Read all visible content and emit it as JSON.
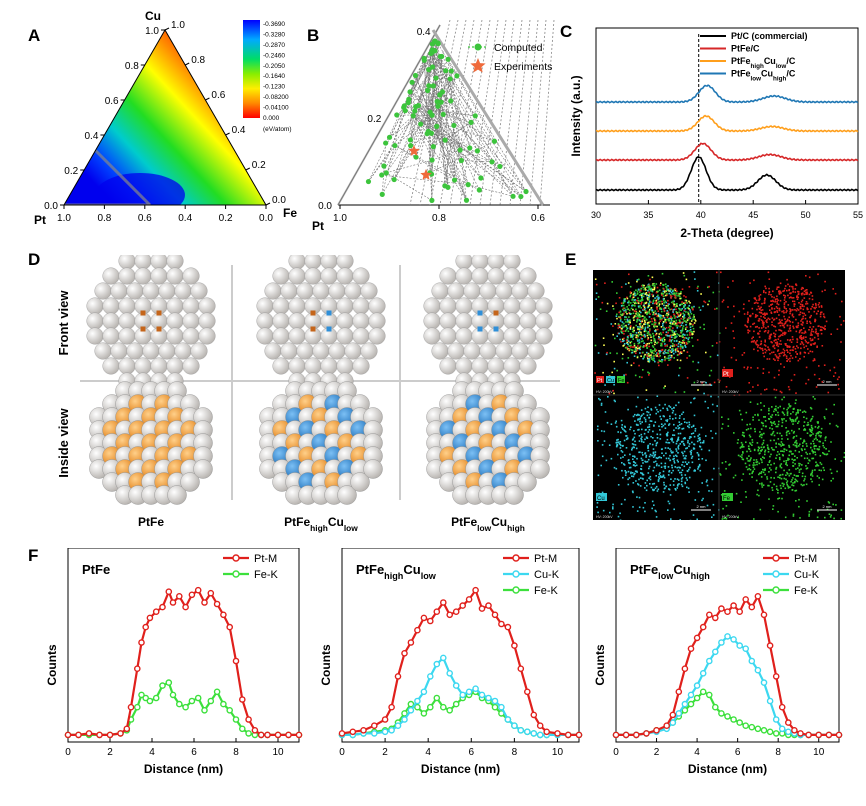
{
  "figure": {
    "panel_labels": [
      "A",
      "B",
      "C",
      "D",
      "E",
      "F"
    ]
  },
  "panelA": {
    "corner_labels": {
      "top": "Cu",
      "left": "Pt",
      "right": "Fe"
    },
    "left_ticks": [
      "0.0",
      "0.2",
      "0.4",
      "0.6",
      "0.8",
      "1.0"
    ],
    "right_ticks": [
      "0.0",
      "0.2",
      "0.4",
      "0.6",
      "0.8",
      "1.0"
    ],
    "bottom_ticks": [
      "1.0",
      "0.8",
      "0.6",
      "0.4",
      "0.2",
      "0.0"
    ],
    "colorbar_values": [
      "-0.3690",
      "-0.3280",
      "-0.2870",
      "-0.2460",
      "-0.2050",
      "-0.1640",
      "-0.1230",
      "-0.08200",
      "-0.04100",
      "0.000"
    ],
    "colorbar_unit": "(eV/atom)",
    "colors": {
      "high": "#0000ff",
      "mid": "#00dd00",
      "low": "#ff0000"
    }
  },
  "panelB": {
    "corner_label": "Pt",
    "left_ticks": [
      "0.0",
      "0.2",
      "0.4"
    ],
    "bottom_ticks": [
      "1.0",
      "0.8",
      "0.6"
    ],
    "legend": {
      "computed": "Computed",
      "experiments": "Experiments"
    },
    "colors": {
      "computed": "#3cc43c",
      "experiments": "#ef6a3b"
    }
  },
  "chart_data": [
    {
      "type": "line",
      "panel": "C",
      "title": "",
      "xlabel": "2-Theta (degree)",
      "ylabel": "Intensity (a.u.)",
      "xlim": [
        30,
        55
      ],
      "xticks": [
        "30",
        "35",
        "40",
        "45",
        "50",
        "55"
      ],
      "reference_line_x": 39.8,
      "legend": [
        {
          "name": "Pt/C (commercial)",
          "color": "#000000"
        },
        {
          "name": "PtFe/C",
          "color": "#d62728"
        },
        {
          "name": "PtFe",
          "sub1": "high",
          "mid": "Cu",
          "sub2": "low",
          "tail": "/C",
          "color": "#ff9f1c"
        },
        {
          "name": "PtFe",
          "sub1": "low",
          "mid": "Cu",
          "sub2": "high",
          "tail": "/C",
          "color": "#1f77b4"
        }
      ],
      "series": [
        {
          "name": "PtFe_lowCu_high/C",
          "color": "#1f77b4",
          "offset": 3,
          "peaks": [
            [
              40.6,
              0.55,
              1.1
            ],
            [
              47.0,
              0.2,
              1.5
            ]
          ]
        },
        {
          "name": "PtFe_highCu_low/C",
          "color": "#ff9f1c",
          "offset": 2,
          "peaks": [
            [
              40.5,
              0.5,
              1.1
            ],
            [
              46.8,
              0.15,
              1.5
            ]
          ]
        },
        {
          "name": "PtFe/C",
          "color": "#d62728",
          "offset": 1,
          "peaks": [
            [
              40.2,
              0.55,
              1.1
            ],
            [
              46.6,
              0.18,
              1.5
            ]
          ]
        },
        {
          "name": "Pt/C (commercial)",
          "color": "#000000",
          "offset": 0,
          "peaks": [
            [
              39.8,
              1.1,
              1.0
            ],
            [
              46.3,
              0.5,
              1.2
            ]
          ]
        }
      ]
    },
    {
      "type": "line",
      "panel": "F1",
      "title": "PtFe",
      "xlabel": "Distance (nm)",
      "ylabel": "Counts",
      "xlim": [
        0,
        11
      ],
      "xticks": [
        "0",
        "2",
        "4",
        "6",
        "8",
        "10"
      ],
      "legend": [
        {
          "name": "Pt-M",
          "color": "#e0201c"
        },
        {
          "name": "Fe-K",
          "color": "#3ce03c"
        }
      ],
      "series": [
        {
          "name": "Pt-M",
          "color": "#e0201c",
          "x": [
            0,
            0.5,
            1,
            1.5,
            2,
            2.5,
            2.8,
            3.0,
            3.3,
            3.5,
            3.7,
            3.9,
            4.2,
            4.5,
            4.8,
            5.0,
            5.3,
            5.6,
            5.9,
            6.2,
            6.5,
            6.8,
            7.1,
            7.4,
            7.7,
            8.0,
            8.3,
            8.6,
            8.9,
            9.2,
            9.5,
            10,
            10.5,
            11
          ],
          "y": [
            0.02,
            0.02,
            0.03,
            0.02,
            0.02,
            0.03,
            0.06,
            0.2,
            0.45,
            0.62,
            0.72,
            0.78,
            0.82,
            0.85,
            0.95,
            0.88,
            0.92,
            0.85,
            0.93,
            0.96,
            0.88,
            0.94,
            0.87,
            0.8,
            0.72,
            0.5,
            0.25,
            0.12,
            0.05,
            0.02,
            0.02,
            0.02,
            0.02,
            0.02
          ]
        },
        {
          "name": "Fe-K",
          "color": "#3ce03c",
          "x": [
            0,
            0.5,
            1,
            1.5,
            2,
            2.5,
            2.8,
            3.0,
            3.3,
            3.5,
            3.7,
            3.9,
            4.2,
            4.5,
            4.8,
            5.0,
            5.3,
            5.6,
            5.9,
            6.2,
            6.5,
            6.8,
            7.1,
            7.4,
            7.7,
            8.0,
            8.3,
            8.6,
            8.9,
            9.2,
            9.5,
            10,
            10.5,
            11
          ],
          "y": [
            0.02,
            0.02,
            0.02,
            0.02,
            0.02,
            0.03,
            0.05,
            0.12,
            0.2,
            0.28,
            0.26,
            0.24,
            0.26,
            0.34,
            0.36,
            0.28,
            0.22,
            0.2,
            0.24,
            0.26,
            0.18,
            0.24,
            0.3,
            0.22,
            0.18,
            0.12,
            0.06,
            0.03,
            0.02,
            0.02,
            0.02,
            0.02,
            0.02,
            0.02
          ]
        }
      ]
    },
    {
      "type": "line",
      "panel": "F2",
      "title": "PtFe",
      "title_sub1": "high",
      "title_mid": "Cu",
      "title_sub2": "low",
      "xlabel": "Distance (nm)",
      "ylabel": "Counts",
      "xlim": [
        0,
        11
      ],
      "xticks": [
        "0",
        "2",
        "4",
        "6",
        "8",
        "10"
      ],
      "legend": [
        {
          "name": "Pt-M",
          "color": "#e0201c"
        },
        {
          "name": "Cu-K",
          "color": "#3cd8f0"
        },
        {
          "name": "Fe-K",
          "color": "#3ce03c"
        }
      ],
      "series": [
        {
          "name": "Pt-M",
          "color": "#e0201c",
          "x": [
            0,
            0.5,
            1,
            1.5,
            2,
            2.3,
            2.6,
            2.9,
            3.2,
            3.5,
            3.8,
            4.1,
            4.4,
            4.7,
            5.0,
            5.3,
            5.6,
            5.9,
            6.2,
            6.5,
            6.8,
            7.1,
            7.4,
            7.7,
            8.0,
            8.3,
            8.6,
            8.9,
            9.2,
            9.5,
            10,
            10.5,
            11
          ],
          "y": [
            0.03,
            0.04,
            0.05,
            0.08,
            0.12,
            0.2,
            0.4,
            0.55,
            0.62,
            0.7,
            0.78,
            0.76,
            0.82,
            0.88,
            0.8,
            0.82,
            0.86,
            0.9,
            0.96,
            0.84,
            0.86,
            0.8,
            0.74,
            0.72,
            0.6,
            0.45,
            0.3,
            0.15,
            0.08,
            0.04,
            0.03,
            0.02,
            0.02
          ]
        },
        {
          "name": "Cu-K",
          "color": "#3cd8f0",
          "x": [
            0,
            0.5,
            1,
            1.5,
            2,
            2.3,
            2.6,
            2.9,
            3.2,
            3.5,
            3.8,
            4.1,
            4.4,
            4.7,
            5.0,
            5.3,
            5.6,
            5.9,
            6.2,
            6.5,
            6.8,
            7.1,
            7.4,
            7.7,
            8.0,
            8.3,
            8.6,
            8.9,
            9.2,
            9.5,
            10,
            10.5,
            11
          ],
          "y": [
            0.02,
            0.02,
            0.03,
            0.03,
            0.04,
            0.05,
            0.08,
            0.12,
            0.18,
            0.24,
            0.3,
            0.4,
            0.48,
            0.52,
            0.42,
            0.34,
            0.28,
            0.3,
            0.32,
            0.28,
            0.26,
            0.24,
            0.2,
            0.12,
            0.08,
            0.05,
            0.04,
            0.03,
            0.02,
            0.02,
            0.02,
            0.02,
            0.02
          ]
        },
        {
          "name": "Fe-K",
          "color": "#3ce03c",
          "x": [
            0,
            0.5,
            1,
            1.5,
            2,
            2.3,
            2.6,
            2.9,
            3.2,
            3.5,
            3.8,
            4.1,
            4.4,
            4.7,
            5.0,
            5.3,
            5.6,
            5.9,
            6.2,
            6.5,
            6.8,
            7.1,
            7.4,
            7.7,
            8.0,
            8.3,
            8.6,
            8.9,
            9.2,
            9.5,
            10,
            10.5,
            11
          ],
          "y": [
            0.02,
            0.02,
            0.03,
            0.04,
            0.05,
            0.06,
            0.1,
            0.16,
            0.22,
            0.2,
            0.16,
            0.2,
            0.26,
            0.2,
            0.18,
            0.22,
            0.26,
            0.28,
            0.3,
            0.26,
            0.24,
            0.2,
            0.16,
            0.12,
            0.08,
            0.05,
            0.04,
            0.03,
            0.02,
            0.02,
            0.02,
            0.02,
            0.02
          ]
        }
      ]
    },
    {
      "type": "line",
      "panel": "F3",
      "title": "PtFe",
      "title_sub1": "low",
      "title_mid": "Cu",
      "title_sub2": "high",
      "xlabel": "Distance (nm)",
      "ylabel": "Counts",
      "xlim": [
        0,
        11
      ],
      "xticks": [
        "0",
        "2",
        "4",
        "6",
        "8",
        "10"
      ],
      "legend": [
        {
          "name": "Pt-M",
          "color": "#e0201c"
        },
        {
          "name": "Cu-K",
          "color": "#3cd8f0"
        },
        {
          "name": "Fe-K",
          "color": "#3ce03c"
        }
      ],
      "series": [
        {
          "name": "Pt-M",
          "color": "#e0201c",
          "x": [
            0,
            0.5,
            1,
            1.5,
            2,
            2.5,
            2.8,
            3.1,
            3.4,
            3.7,
            4.0,
            4.3,
            4.6,
            4.9,
            5.2,
            5.5,
            5.8,
            6.1,
            6.4,
            6.7,
            7.0,
            7.3,
            7.6,
            7.9,
            8.2,
            8.5,
            8.8,
            9.1,
            9.5,
            10,
            10.5,
            11
          ],
          "y": [
            0.02,
            0.02,
            0.02,
            0.03,
            0.05,
            0.08,
            0.15,
            0.3,
            0.45,
            0.58,
            0.65,
            0.72,
            0.8,
            0.78,
            0.84,
            0.82,
            0.86,
            0.82,
            0.9,
            0.85,
            0.92,
            0.8,
            0.6,
            0.4,
            0.2,
            0.1,
            0.05,
            0.03,
            0.02,
            0.02,
            0.02,
            0.02
          ]
        },
        {
          "name": "Cu-K",
          "color": "#3cd8f0",
          "x": [
            0,
            0.5,
            1,
            1.5,
            2,
            2.5,
            2.8,
            3.1,
            3.4,
            3.7,
            4.0,
            4.3,
            4.6,
            4.9,
            5.2,
            5.5,
            5.8,
            6.1,
            6.4,
            6.7,
            7.0,
            7.3,
            7.6,
            7.9,
            8.2,
            8.5,
            8.8,
            9.1,
            9.5,
            10,
            10.5,
            11
          ],
          "y": [
            0.02,
            0.02,
            0.02,
            0.03,
            0.04,
            0.06,
            0.1,
            0.16,
            0.22,
            0.28,
            0.34,
            0.42,
            0.5,
            0.56,
            0.62,
            0.66,
            0.64,
            0.6,
            0.58,
            0.5,
            0.44,
            0.36,
            0.24,
            0.12,
            0.06,
            0.04,
            0.03,
            0.02,
            0.02,
            0.02,
            0.02,
            0.02
          ]
        },
        {
          "name": "Fe-K",
          "color": "#3ce03c",
          "x": [
            0,
            0.5,
            1,
            1.5,
            2,
            2.5,
            2.8,
            3.1,
            3.4,
            3.7,
            4.0,
            4.3,
            4.6,
            4.9,
            5.2,
            5.5,
            5.8,
            6.1,
            6.4,
            6.7,
            7.0,
            7.3,
            7.6,
            7.9,
            8.2,
            8.5,
            8.8,
            9.1,
            9.5,
            10,
            10.5,
            11
          ],
          "y": [
            0.02,
            0.02,
            0.02,
            0.03,
            0.05,
            0.07,
            0.1,
            0.14,
            0.18,
            0.22,
            0.26,
            0.3,
            0.28,
            0.2,
            0.16,
            0.14,
            0.12,
            0.1,
            0.08,
            0.07,
            0.06,
            0.05,
            0.04,
            0.03,
            0.03,
            0.02,
            0.02,
            0.02,
            0.02,
            0.02,
            0.02,
            0.02
          ]
        }
      ]
    }
  ],
  "panelD": {
    "row_labels": {
      "front": "Front view",
      "inside": "Inside view"
    },
    "column_labels": [
      {
        "main": "PtFe",
        "sub1": "",
        "mid": "",
        "sub2": ""
      },
      {
        "main": "PtFe",
        "sub1": "high",
        "mid": "Cu",
        "sub2": "low"
      },
      {
        "main": "PtFe",
        "sub1": "low",
        "mid": "Cu",
        "sub2": "high"
      }
    ],
    "colors": {
      "pt": "#d9d6d3",
      "fe": "#f39c2a",
      "cu": "#2f8fd8",
      "fe_small": "#c5651a"
    }
  },
  "panelE": {
    "legend_text": [
      "Pt",
      "Cu",
      "Fe"
    ],
    "map_labels": {
      "pt": "Pt",
      "cu": "Cu",
      "fe": "Fe"
    },
    "scale_text": "2 nm",
    "info_text": "HV: 200kV",
    "colors": {
      "pt": "#e0201c",
      "cu": "#33c8d8",
      "fe": "#33cc33"
    }
  }
}
